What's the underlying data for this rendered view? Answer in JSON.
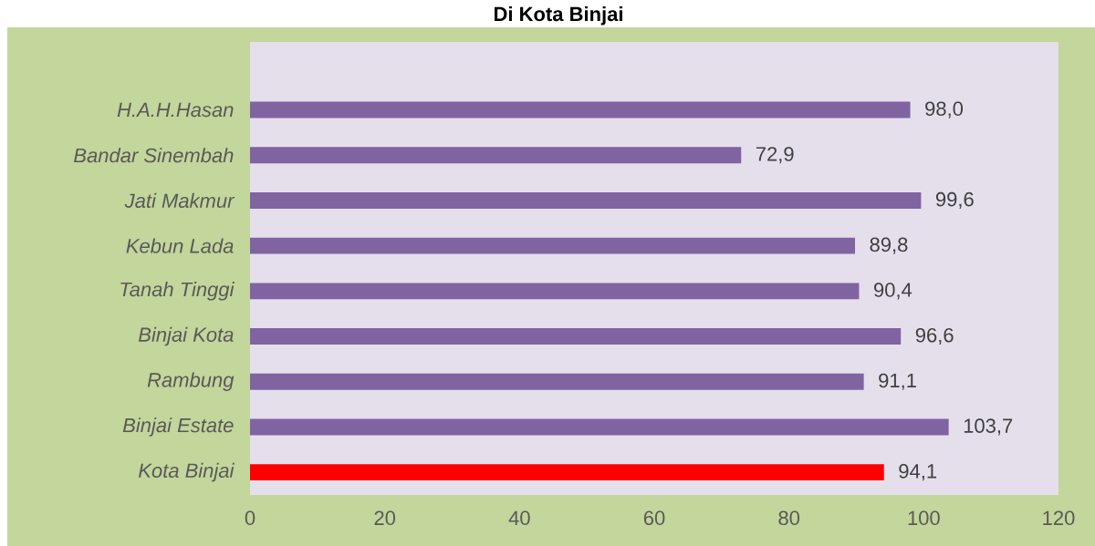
{
  "chart_data": {
    "type": "bar",
    "orientation": "horizontal",
    "title": "Di Kota Binjai",
    "categories": [
      "H.A.H.Hasan",
      "Bandar Sinembah",
      "Jati Makmur",
      "Kebun Lada",
      "Tanah Tinggi",
      "Binjai Kota",
      "Rambung",
      "Binjai Estate",
      "Kota Binjai"
    ],
    "values": [
      98.0,
      72.9,
      99.6,
      89.8,
      90.4,
      96.6,
      91.1,
      103.7,
      94.1
    ],
    "colors": [
      "#8064a2",
      "#8064a2",
      "#8064a2",
      "#8064a2",
      "#8064a2",
      "#8064a2",
      "#8064a2",
      "#8064a2",
      "#ff0000"
    ],
    "value_labels": [
      "98,0",
      "72,9",
      "99,6",
      "89,8",
      "90,4",
      "96,6",
      "91,1",
      "103,7",
      "94,1"
    ],
    "xlim": [
      0,
      120
    ],
    "xticks": [
      0,
      20,
      40,
      60,
      80,
      100,
      120
    ]
  }
}
